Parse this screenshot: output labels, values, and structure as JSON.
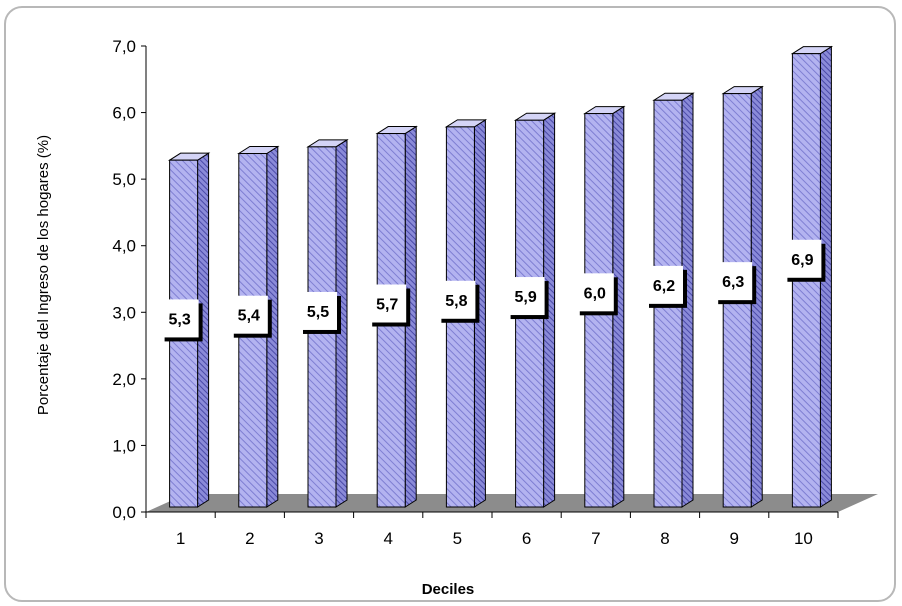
{
  "chart_data": {
    "type": "bar",
    "categories": [
      "1",
      "2",
      "3",
      "4",
      "5",
      "6",
      "7",
      "8",
      "9",
      "10"
    ],
    "values": [
      5.3,
      5.4,
      5.5,
      5.7,
      5.8,
      5.9,
      6.0,
      6.2,
      6.3,
      6.9
    ],
    "data_labels": [
      "5,3",
      "5,4",
      "5,5",
      "5,7",
      "5,8",
      "5,9",
      "6,0",
      "6,2",
      "6,3",
      "6,9"
    ],
    "xlabel": "Deciles",
    "ylabel": "Porcentaje del Ingreso de los hogares (%)",
    "ylim": [
      0,
      7
    ],
    "yticks": [
      "0,0",
      "1,0",
      "2,0",
      "3,0",
      "4,0",
      "5,0",
      "6,0",
      "7,0"
    ],
    "grid": false,
    "legend": "none",
    "colors": {
      "bar_face": "#b3b3f0",
      "bar_stripe": "#7e7ed2",
      "bar_side": "#5a5ab8",
      "floor": "#8c8c8c",
      "label_shadow": "#000000"
    }
  }
}
